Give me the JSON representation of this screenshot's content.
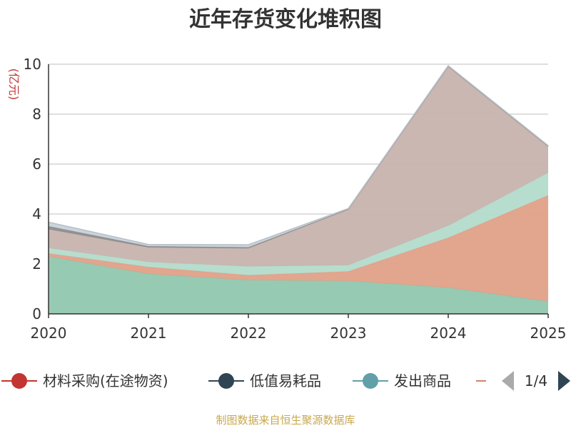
{
  "chart_data": {
    "type": "area",
    "stacked": true,
    "title": "近年存货变化堆积图",
    "ylabel": "(亿元)",
    "x": [
      "2020",
      "2021",
      "2022",
      "2023",
      "2024",
      "2025"
    ],
    "ylim": [
      0,
      10
    ],
    "yticks": [
      0,
      2,
      4,
      6,
      8,
      10
    ],
    "grid": true,
    "series": [
      {
        "color": "#91c7ae",
        "values": [
          2.3,
          1.6,
          1.35,
          1.32,
          1.05,
          0.5
        ]
      },
      {
        "color": "#e0a088",
        "values": [
          0.12,
          0.28,
          0.2,
          0.38,
          2.0,
          4.25
        ]
      },
      {
        "color": "#b3dbcb",
        "values": [
          0.22,
          0.2,
          0.35,
          0.25,
          0.48,
          0.9
        ]
      },
      {
        "color": "#c7b3ae",
        "values": [
          0.75,
          0.58,
          0.72,
          2.23,
          6.37,
          1.05
        ]
      },
      {
        "color": "#8c8c8c",
        "values": [
          0.12,
          0.05,
          0.05,
          0.02,
          0.02,
          0.02
        ]
      },
      {
        "color": "#c8d2da",
        "values": [
          0.16,
          0.07,
          0.1,
          0.02,
          0.02,
          0.02
        ]
      }
    ],
    "legend": {
      "position": "bottom",
      "items": [
        {
          "label": "材料采购(在途物资)",
          "color": "#c23531"
        },
        {
          "label": "低值易耗品",
          "color": "#2f4554"
        },
        {
          "label": "发出商品",
          "color": "#61a0a8"
        }
      ],
      "next_marker_color": "#d48265",
      "page_label": "1/4"
    }
  },
  "footer": {
    "source": "制图数据来自恒生聚源数据库"
  }
}
